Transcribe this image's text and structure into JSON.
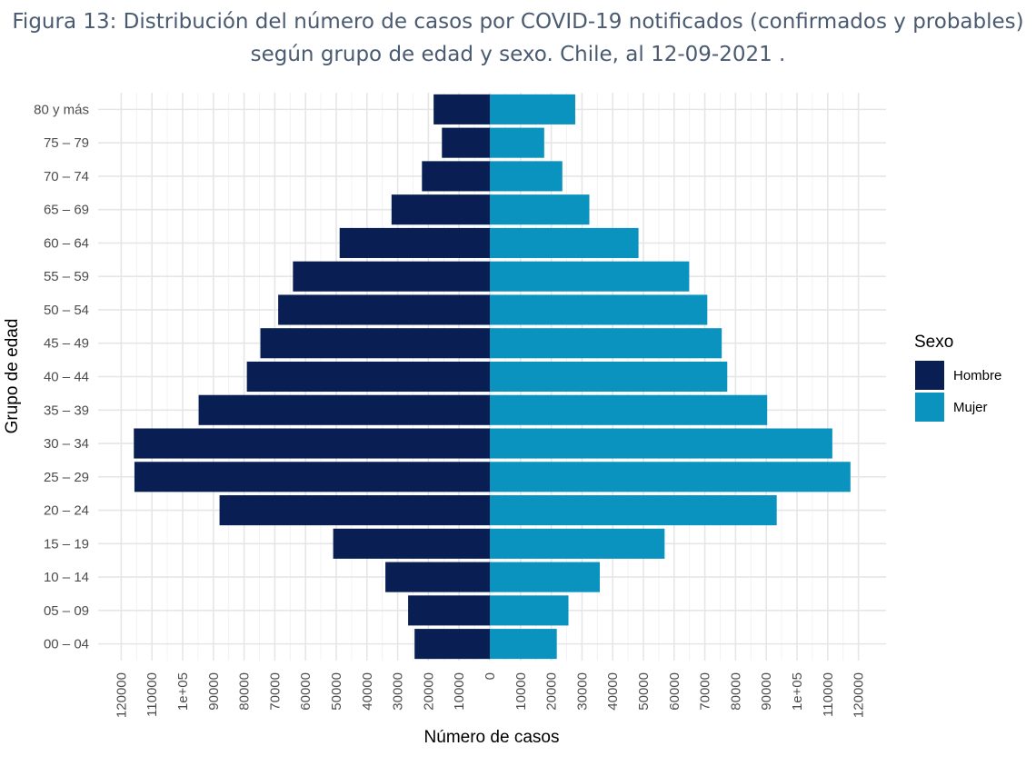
{
  "title": {
    "line1": "Figura 13: Distribución del número de casos por COVID-19 notificados (confirmados y probables)",
    "line2": "según grupo de edad y sexo. Chile, al 12-09-2021 ."
  },
  "chart_data": {
    "type": "bar",
    "orientation": "horizontal-population-pyramid",
    "categories": [
      "00 – 04",
      "05 – 09",
      "10 – 14",
      "15 – 19",
      "20 – 24",
      "25 – 29",
      "30 – 34",
      "35 – 39",
      "40 – 44",
      "45 – 49",
      "50 – 54",
      "55 – 59",
      "60 – 64",
      "65 – 69",
      "70 – 74",
      "75 – 79",
      "80 y más"
    ],
    "series": [
      {
        "name": "Hombre",
        "color": "#091f54",
        "values": [
          24500,
          26600,
          34000,
          51000,
          88000,
          115700,
          115900,
          94800,
          79100,
          74700,
          68900,
          64100,
          48900,
          32000,
          22100,
          15600,
          18300
        ]
      },
      {
        "name": "Mujer",
        "color": "#0993be",
        "values": [
          21800,
          25600,
          35800,
          56900,
          93400,
          117400,
          111500,
          90300,
          77300,
          75500,
          70800,
          64900,
          48400,
          32400,
          23600,
          17700,
          27800
        ]
      }
    ],
    "xlabel": "Número de casos",
    "ylabel": "Grupo de edad",
    "xlim": [
      -128000,
      128000
    ],
    "xticks": [
      -120000,
      -110000,
      -100000,
      -90000,
      -80000,
      -70000,
      -60000,
      -50000,
      -40000,
      -30000,
      -20000,
      -10000,
      0,
      10000,
      20000,
      30000,
      40000,
      50000,
      60000,
      70000,
      80000,
      90000,
      100000,
      110000,
      120000
    ],
    "xtick_labels": [
      "120000",
      "110000",
      "1e+05",
      "90000",
      "80000",
      "70000",
      "60000",
      "50000",
      "40000",
      "30000",
      "20000",
      "10000",
      "0",
      "10000",
      "20000",
      "30000",
      "40000",
      "50000",
      "60000",
      "70000",
      "80000",
      "90000",
      "1e+05",
      "110000",
      "120000"
    ],
    "legend": {
      "title": "Sexo",
      "position": "right",
      "items": [
        "Hombre",
        "Mujer"
      ]
    },
    "grid": true
  }
}
